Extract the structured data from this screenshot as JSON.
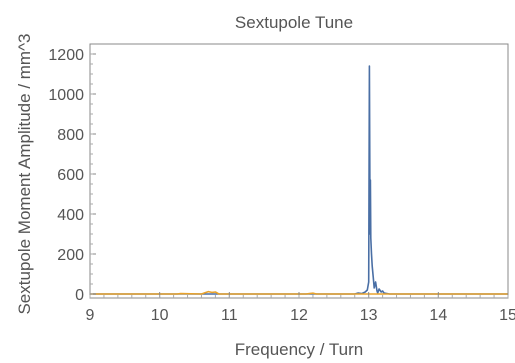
{
  "chart_data": {
    "type": "line",
    "title": "Sextupole Tune",
    "xlabel": "Frequency / Turn",
    "ylabel": "Sextupole Moment Amplitude / mm^3",
    "xlim": [
      9,
      15
    ],
    "ylim": [
      0,
      1200
    ],
    "x_ticks": [
      "9",
      "10",
      "11",
      "12",
      "13",
      "14",
      "15"
    ],
    "y_ticks": [
      "0",
      "200",
      "400",
      "600",
      "800",
      "1000",
      "1200"
    ],
    "grid": false,
    "legend": "none",
    "series": [
      {
        "color": "#4a6fa5",
        "x": [
          9.0,
          12.8,
          12.85,
          12.9,
          12.95,
          12.98,
          13.0,
          13.01,
          13.02,
          13.025,
          13.03,
          13.04,
          13.05,
          13.07,
          13.08,
          13.1,
          13.12,
          13.13,
          13.15,
          13.17,
          13.18,
          13.2,
          13.22,
          13.25,
          13.3,
          15.0
        ],
        "values": [
          0,
          0,
          5,
          2,
          10,
          20,
          60,
          1140,
          300,
          570,
          280,
          200,
          140,
          70,
          30,
          60,
          15,
          5,
          25,
          15,
          10,
          15,
          5,
          3,
          0,
          0
        ]
      },
      {
        "color": "#e8a22b",
        "x": [
          9.0,
          10.25,
          10.3,
          10.6,
          10.65,
          10.7,
          10.75,
          10.8,
          10.85,
          12.1,
          12.15,
          12.2,
          12.25,
          15.0
        ],
        "values": [
          0,
          0,
          2,
          0,
          6,
          12,
          8,
          10,
          0,
          0,
          2,
          4,
          0,
          0
        ]
      }
    ]
  }
}
